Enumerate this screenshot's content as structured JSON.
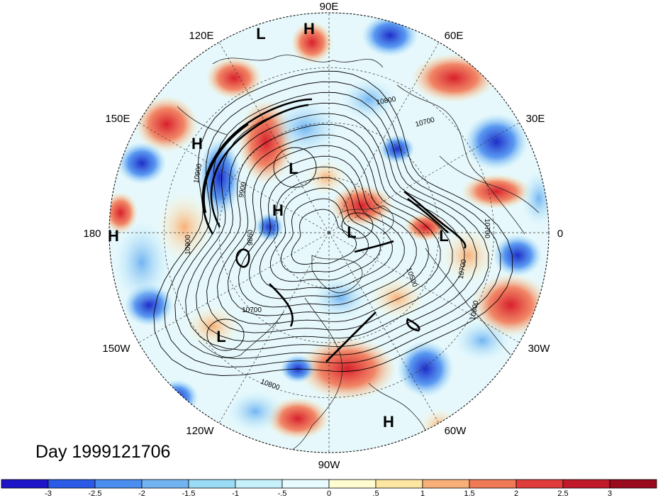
{
  "map": {
    "projection": "north-polar-stereographic",
    "longitude_labels": [
      "90E",
      "60E",
      "30E",
      "0",
      "30W",
      "60W",
      "90W",
      "120W",
      "150W",
      "180",
      "150E",
      "120E"
    ],
    "contour_labels": [
      "10800",
      "10700",
      "10900",
      "9900",
      "9860",
      "10900",
      "10700",
      "10800",
      "10500",
      "10700",
      "10800",
      "10700"
    ],
    "pressure_centers": [
      {
        "type": "L",
        "label": "L"
      },
      {
        "type": "H",
        "label": "H"
      },
      {
        "type": "H",
        "label": "H"
      },
      {
        "type": "L",
        "label": "L"
      },
      {
        "type": "H",
        "label": "H"
      },
      {
        "type": "H",
        "label": "H"
      },
      {
        "type": "L",
        "label": "L"
      },
      {
        "type": "L",
        "label": "L"
      },
      {
        "type": "L",
        "label": "L"
      },
      {
        "type": "H",
        "label": "H"
      }
    ]
  },
  "day_label": "Day 1999121706",
  "colorbar": {
    "tick_labels": [
      "-3",
      "-2.5",
      "-2",
      "-1.5",
      "-1",
      "-.5",
      "0",
      ".5",
      "1",
      "1.5",
      "2",
      "2.5",
      "3"
    ],
    "colors": [
      "#1e14c8",
      "#2a5ae6",
      "#4a8ef0",
      "#72b4f2",
      "#9adcf6",
      "#c6f0fa",
      "#e8fcff",
      "#fffcd2",
      "#fde6a2",
      "#f8b078",
      "#f07a56",
      "#e03c3c",
      "#c01a2a",
      "#9a0a1e"
    ]
  }
}
